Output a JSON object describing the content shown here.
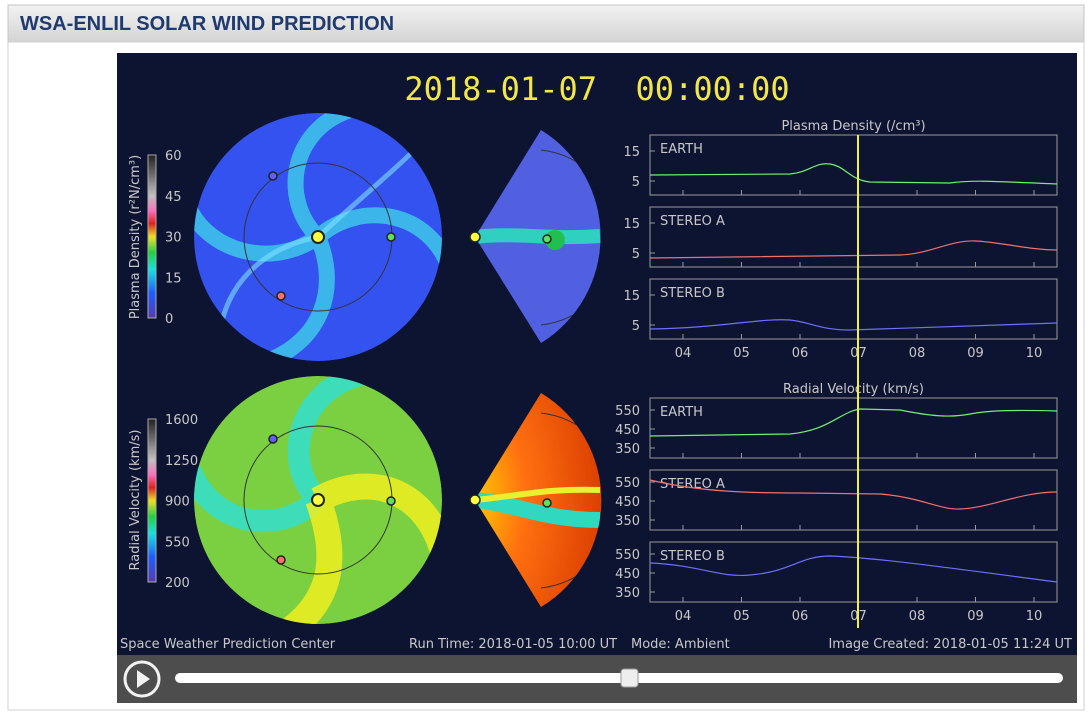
{
  "header": {
    "title": "WSA-ENLIL SOLAR WIND PREDICTION"
  },
  "player": {
    "timestamp": "2018-01-07  00:00:00",
    "density": {
      "colorbar_label": "Plasma Density (r²N/cm³)",
      "colorbar_ticks": [
        "60",
        "45",
        "30",
        "15",
        "0"
      ],
      "plot_title": "Plasma Density (/cm³)",
      "panels": [
        {
          "name": "EARTH",
          "yticks": [
            "15",
            "5"
          ]
        },
        {
          "name": "STEREO A",
          "yticks": [
            "15",
            "5"
          ]
        },
        {
          "name": "STEREO B",
          "yticks": [
            "15",
            "5"
          ]
        }
      ]
    },
    "velocity": {
      "colorbar_label": "Radial Velocity (km/s)",
      "colorbar_ticks": [
        "1600",
        "1250",
        "900",
        "550",
        "200"
      ],
      "plot_title": "Radial Velocity (km/s)",
      "panels": [
        {
          "name": "EARTH",
          "yticks": [
            "550",
            "450",
            "350"
          ]
        },
        {
          "name": "STEREO A",
          "yticks": [
            "550",
            "450",
            "350"
          ]
        },
        {
          "name": "STEREO B",
          "yticks": [
            "550",
            "450",
            "350"
          ]
        }
      ]
    },
    "xticks": [
      "04",
      "05",
      "06",
      "07",
      "08",
      "09",
      "10"
    ],
    "footer": {
      "left": "Space Weather Prediction Center",
      "run_time": "Run Time: 2018-01-05 10:00 UT",
      "mode": "Mode: Ambient",
      "created": "Image Created: 2018-01-05 11:24 UT"
    }
  }
}
